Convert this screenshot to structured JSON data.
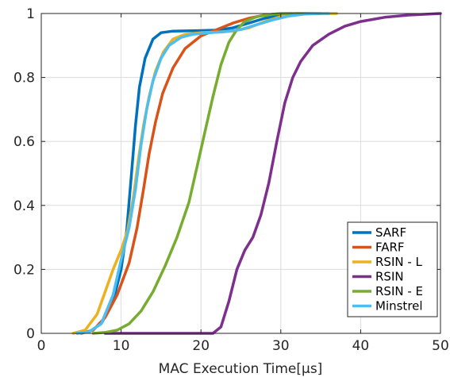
{
  "chart_data": {
    "type": "line",
    "xlabel": "MAC Execution Time[μs]",
    "ylabel": "",
    "xlim": [
      0,
      50
    ],
    "ylim": [
      0,
      1
    ],
    "xticks": [
      0,
      10,
      20,
      30,
      40,
      50
    ],
    "yticks": [
      0,
      0.2,
      0.4,
      0.6,
      0.8,
      1
    ],
    "ytick_labels": [
      "0",
      "0.2",
      "0.4",
      "0.6",
      "0.8",
      "1"
    ],
    "grid": true,
    "legend_position": "bottom-right",
    "series": [
      {
        "name": "SARF",
        "color": "#0072BD",
        "points": [
          [
            4.5,
            0
          ],
          [
            6,
            0.005
          ],
          [
            7.5,
            0.03
          ],
          [
            9,
            0.1
          ],
          [
            10,
            0.2
          ],
          [
            10.7,
            0.32
          ],
          [
            11.3,
            0.5
          ],
          [
            11.8,
            0.65
          ],
          [
            12.3,
            0.77
          ],
          [
            13,
            0.86
          ],
          [
            14,
            0.92
          ],
          [
            15,
            0.94
          ],
          [
            16.5,
            0.945
          ],
          [
            19,
            0.946
          ],
          [
            22,
            0.948
          ],
          [
            24,
            0.955
          ],
          [
            26,
            0.97
          ],
          [
            28,
            0.985
          ],
          [
            30,
            0.995
          ],
          [
            32,
            1
          ],
          [
            35,
            1
          ]
        ]
      },
      {
        "name": "FARF",
        "color": "#D95319",
        "points": [
          [
            5,
            0
          ],
          [
            6.5,
            0.01
          ],
          [
            8,
            0.05
          ],
          [
            9.5,
            0.12
          ],
          [
            11,
            0.22
          ],
          [
            12,
            0.33
          ],
          [
            12.8,
            0.45
          ],
          [
            13.5,
            0.56
          ],
          [
            14.3,
            0.66
          ],
          [
            15.2,
            0.75
          ],
          [
            16.5,
            0.83
          ],
          [
            18,
            0.89
          ],
          [
            20,
            0.93
          ],
          [
            22,
            0.95
          ],
          [
            24,
            0.97
          ],
          [
            26,
            0.985
          ],
          [
            28,
            0.995
          ],
          [
            30,
            1
          ],
          [
            35,
            1
          ]
        ]
      },
      {
        "name": "RSIN - L",
        "color": "#EDB120",
        "points": [
          [
            4,
            0
          ],
          [
            5.5,
            0.01
          ],
          [
            7,
            0.06
          ],
          [
            8,
            0.13
          ],
          [
            9,
            0.2
          ],
          [
            10,
            0.26
          ],
          [
            10.8,
            0.32
          ],
          [
            11.5,
            0.42
          ],
          [
            12.2,
            0.55
          ],
          [
            12.8,
            0.65
          ],
          [
            13.5,
            0.74
          ],
          [
            14.3,
            0.82
          ],
          [
            15.3,
            0.88
          ],
          [
            16.5,
            0.92
          ],
          [
            18,
            0.935
          ],
          [
            20,
            0.94
          ],
          [
            22,
            0.942
          ],
          [
            24,
            0.945
          ],
          [
            26,
            0.955
          ],
          [
            28,
            0.975
          ],
          [
            30,
            0.99
          ],
          [
            32,
            0.998
          ],
          [
            34,
            1
          ],
          [
            37,
            1
          ]
        ]
      },
      {
        "name": "RSIN",
        "color": "#7E2F8E",
        "points": [
          [
            8,
            0
          ],
          [
            15,
            0
          ],
          [
            20,
            0
          ],
          [
            21.5,
            0
          ],
          [
            22.5,
            0.02
          ],
          [
            23.5,
            0.1
          ],
          [
            24.5,
            0.2
          ],
          [
            25.5,
            0.26
          ],
          [
            26.5,
            0.3
          ],
          [
            27.5,
            0.37
          ],
          [
            28.5,
            0.47
          ],
          [
            29.5,
            0.6
          ],
          [
            30.5,
            0.72
          ],
          [
            31.5,
            0.8
          ],
          [
            32.5,
            0.85
          ],
          [
            34,
            0.9
          ],
          [
            36,
            0.935
          ],
          [
            38,
            0.96
          ],
          [
            40,
            0.975
          ],
          [
            43,
            0.988
          ],
          [
            46,
            0.995
          ],
          [
            50,
            1
          ]
        ]
      },
      {
        "name": "RSIN - E",
        "color": "#77AC30",
        "points": [
          [
            6.5,
            0
          ],
          [
            8,
            0.003
          ],
          [
            9.5,
            0.01
          ],
          [
            11,
            0.03
          ],
          [
            12.5,
            0.07
          ],
          [
            14,
            0.13
          ],
          [
            15.5,
            0.21
          ],
          [
            17,
            0.3
          ],
          [
            18.5,
            0.41
          ],
          [
            19.5,
            0.52
          ],
          [
            20.5,
            0.63
          ],
          [
            21.5,
            0.74
          ],
          [
            22.5,
            0.84
          ],
          [
            23.5,
            0.91
          ],
          [
            24.5,
            0.95
          ],
          [
            25.5,
            0.975
          ],
          [
            27,
            0.99
          ],
          [
            29,
            0.998
          ],
          [
            31,
            1
          ],
          [
            35,
            1
          ]
        ]
      },
      {
        "name": "Minstrel",
        "color": "#4DBEEE",
        "points": [
          [
            4.5,
            0
          ],
          [
            6,
            0.005
          ],
          [
            7.5,
            0.03
          ],
          [
            9,
            0.12
          ],
          [
            10,
            0.23
          ],
          [
            11,
            0.33
          ],
          [
            11.8,
            0.45
          ],
          [
            12.5,
            0.59
          ],
          [
            13.2,
            0.7
          ],
          [
            14,
            0.79
          ],
          [
            15,
            0.86
          ],
          [
            16,
            0.9
          ],
          [
            17.5,
            0.925
          ],
          [
            19,
            0.935
          ],
          [
            21,
            0.94
          ],
          [
            23,
            0.943
          ],
          [
            25,
            0.95
          ],
          [
            27,
            0.965
          ],
          [
            29,
            0.98
          ],
          [
            31,
            0.992
          ],
          [
            33,
            0.998
          ],
          [
            35,
            1
          ],
          [
            36,
            1
          ]
        ]
      }
    ]
  }
}
